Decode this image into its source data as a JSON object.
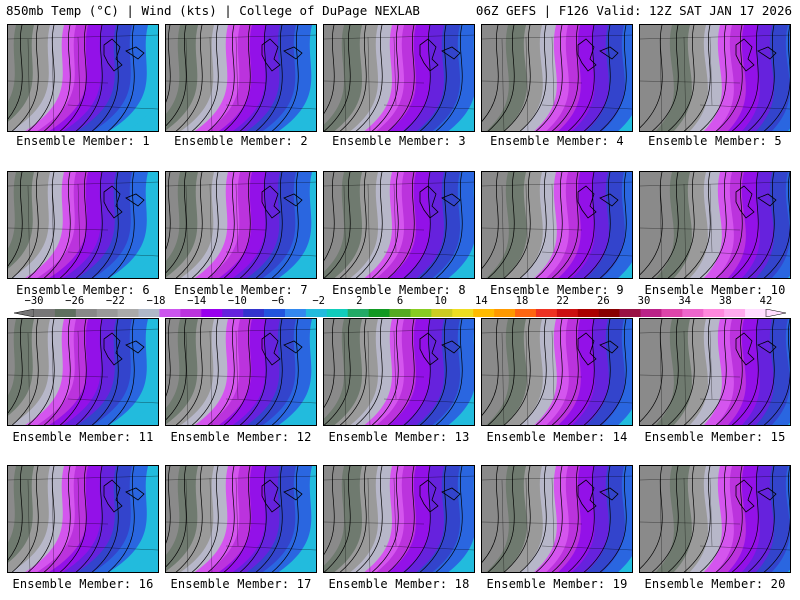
{
  "header": {
    "left_text": "850mb Temp (°C) | Wind (kts) | College of DuPage NEXLAB",
    "right_text": "06Z GEFS | F126 Valid: 12Z SAT JAN 17 2026"
  },
  "members": [
    {
      "label": "Ensemble Member: 1"
    },
    {
      "label": "Ensemble Member: 2"
    },
    {
      "label": "Ensemble Member: 3"
    },
    {
      "label": "Ensemble Member: 4"
    },
    {
      "label": "Ensemble Member: 5"
    },
    {
      "label": "Ensemble Member: 6"
    },
    {
      "label": "Ensemble Member: 7"
    },
    {
      "label": "Ensemble Member: 8"
    },
    {
      "label": "Ensemble Member: 9"
    },
    {
      "label": "Ensemble Member: 10"
    },
    {
      "label": "Ensemble Member: 11"
    },
    {
      "label": "Ensemble Member: 12"
    },
    {
      "label": "Ensemble Member: 13"
    },
    {
      "label": "Ensemble Member: 14"
    },
    {
      "label": "Ensemble Member: 15"
    },
    {
      "label": "Ensemble Member: 16"
    },
    {
      "label": "Ensemble Member: 17"
    },
    {
      "label": "Ensemble Member: 18"
    },
    {
      "label": "Ensemble Member: 19"
    },
    {
      "label": "Ensemble Member: 20"
    }
  ],
  "colorbar": {
    "tick_labels": [
      "−30",
      "−26",
      "−22",
      "−18",
      "−14",
      "−10",
      "−6",
      "−2",
      "2",
      "6",
      "10",
      "14",
      "18",
      "22",
      "26",
      "30",
      "34",
      "38",
      "42"
    ],
    "colors": [
      "#777777",
      "#5f6f5f",
      "#888888",
      "#999999",
      "#aaaaaa",
      "#b0b8c8",
      "#cc55ee",
      "#bb33dd",
      "#9900ee",
      "#6622dd",
      "#3333cc",
      "#2255dd",
      "#3388ee",
      "#22bbdd",
      "#11ccbb",
      "#22aa66",
      "#119922",
      "#55aa22",
      "#88cc22",
      "#cccc22",
      "#eedd22",
      "#ffbb00",
      "#ff9900",
      "#ff6611",
      "#ee3322",
      "#cc1111",
      "#aa0000",
      "#880000",
      "#991144",
      "#bb2288",
      "#dd44aa",
      "#ee66cc",
      "#ff88dd",
      "#ffaaee",
      "#ffddff"
    ]
  }
}
